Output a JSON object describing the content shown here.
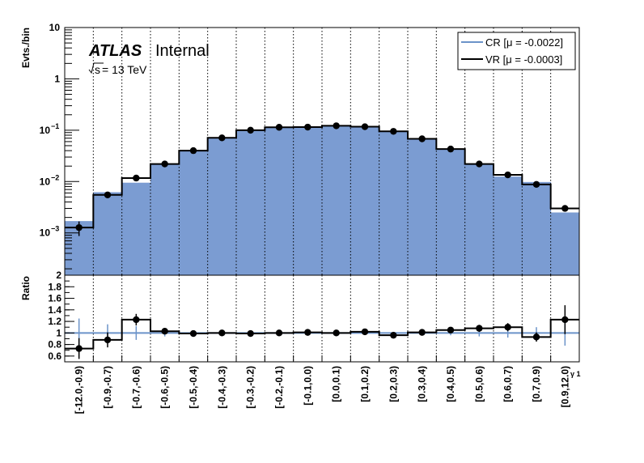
{
  "chart_data": {
    "type": "histogram_with_ratio",
    "categories": [
      "[-12.0,-0.9)",
      "[-0.9,-0.7)",
      "[-0.7,-0.6)",
      "[-0.6,-0.5)",
      "[-0.5,-0.4)",
      "[-0.4,-0.3)",
      "[-0.3,-0.2)",
      "[-0.2,-0.1)",
      "[-0.1,0.0)",
      "[0.0,0.1)",
      "[0.1,0.2)",
      "[0.2,0.3)",
      "[0.3,0.4)",
      "[0.4,0.5)",
      "[0.5,0.6)",
      "[0.6,0.7)",
      "[0.7,0.9)",
      "[0.9,12.0)"
    ],
    "ylabel": "Evts./bin",
    "xlabel_suffix": "γ 1",
    "yscale": "log",
    "ylim": [
      0.00015,
      10
    ],
    "yticks": [
      {
        "value": 10,
        "label": "10"
      },
      {
        "value": 1,
        "label": "1"
      },
      {
        "value": 0.1,
        "label": "10",
        "exp": "−1"
      },
      {
        "value": 0.01,
        "label": "10",
        "exp": "−2"
      },
      {
        "value": 0.001,
        "label": "10",
        "exp": "−3"
      }
    ],
    "grid_x": true,
    "colors": {
      "cr_fill": "#7b9cd2",
      "cr_line": "#6b93c9",
      "vr_line": "#000000"
    },
    "series": [
      {
        "name": "CR [μ = -0.0022]",
        "style": "filled",
        "values": [
          0.0017,
          0.0062,
          0.0095,
          0.022,
          0.04,
          0.071,
          0.101,
          0.115,
          0.115,
          0.122,
          0.116,
          0.097,
          0.068,
          0.042,
          0.022,
          0.0125,
          0.0098,
          0.0025
        ]
      },
      {
        "name": "VR [μ = -0.0003]",
        "style": "step-with-points",
        "values": [
          0.00127,
          0.0055,
          0.0117,
          0.022,
          0.04,
          0.071,
          0.1,
          0.114,
          0.115,
          0.122,
          0.117,
          0.095,
          0.068,
          0.043,
          0.022,
          0.0135,
          0.0088,
          0.003
        ]
      }
    ],
    "ratio": {
      "ylabel": "Ratio",
      "ylim": [
        0.5,
        2.0
      ],
      "yticks": [
        "0.6",
        "0.8",
        "1",
        "1.2",
        "1.4",
        "1.6",
        "1.8",
        "2"
      ],
      "reference": 1.0,
      "values": [
        0.73,
        0.88,
        1.23,
        1.03,
        0.99,
        1.0,
        0.99,
        1.0,
        1.01,
        1.0,
        1.02,
        0.96,
        1.01,
        1.05,
        1.08,
        1.1,
        0.93,
        1.23
      ],
      "errors": [
        0.18,
        0.13,
        0.1,
        0.05,
        0.03,
        0.03,
        0.03,
        0.03,
        0.03,
        0.03,
        0.03,
        0.03,
        0.03,
        0.04,
        0.06,
        0.07,
        0.08,
        0.25
      ],
      "mc_errors": [
        0.25,
        0.15,
        0.12,
        0.06,
        0.03,
        0.02,
        0.02,
        0.02,
        0.02,
        0.02,
        0.02,
        0.02,
        0.03,
        0.04,
        0.06,
        0.08,
        0.1,
        0.22
      ]
    },
    "legend": {
      "placement": "top-right"
    }
  },
  "labels": {
    "experiment": "ATLAS",
    "status": "Internal",
    "energy_prefix": "s",
    "energy_suffix": " = 13 TeV"
  }
}
